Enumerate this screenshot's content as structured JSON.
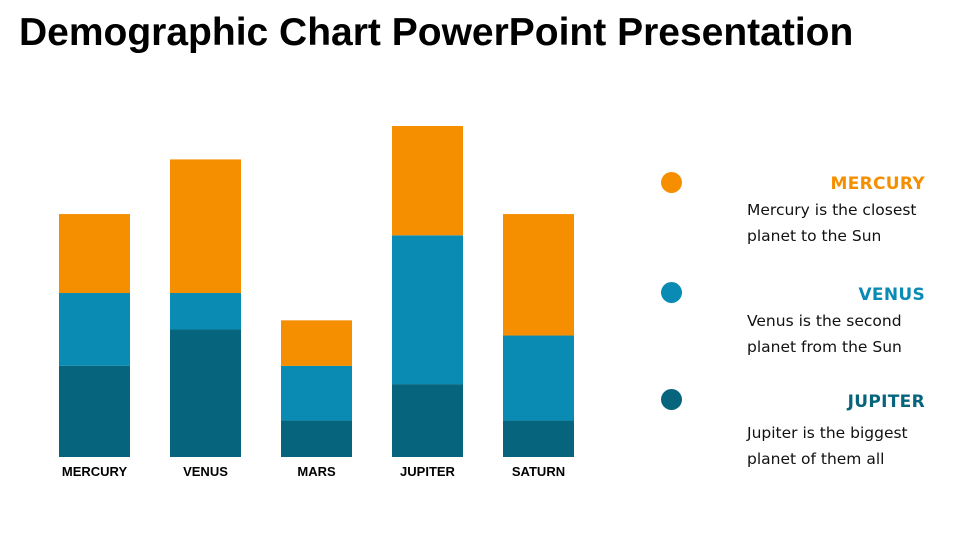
{
  "slide": {
    "title": "Demographic Chart PowerPoint Presentation"
  },
  "colors": {
    "orange": "#f68f00",
    "blue": "#0a8bb3",
    "teal": "#06647c"
  },
  "chart_data": {
    "type": "bar",
    "stacked": true,
    "categories": [
      "MERCURY",
      "VENUS",
      "MARS",
      "JUPITER",
      "SATURN"
    ],
    "series": [
      {
        "name": "JUPITER",
        "color": "#06647c",
        "values": [
          30,
          42,
          12,
          24,
          12
        ]
      },
      {
        "name": "VENUS",
        "color": "#0a8bb3",
        "values": [
          24,
          12,
          18,
          49,
          28
        ]
      },
      {
        "name": "MERCURY",
        "color": "#f68f00",
        "values": [
          26,
          44,
          15,
          36,
          40
        ]
      }
    ],
    "ylim": [
      0,
      110
    ],
    "grid": false,
    "legend_position": "right"
  },
  "legend": [
    {
      "title": "MERCURY",
      "color": "#f68f00",
      "desc_line1": "Mercury is the closest",
      "desc_line2": "planet to the Sun"
    },
    {
      "title": "VENUS",
      "color": "#0a8bb3",
      "desc_line1": "Venus is the second",
      "desc_line2": "planet from the Sun"
    },
    {
      "title": "JUPITER",
      "color": "#06647c",
      "desc_line1": "Jupiter is the biggest",
      "desc_line2": "planet of them all"
    }
  ]
}
